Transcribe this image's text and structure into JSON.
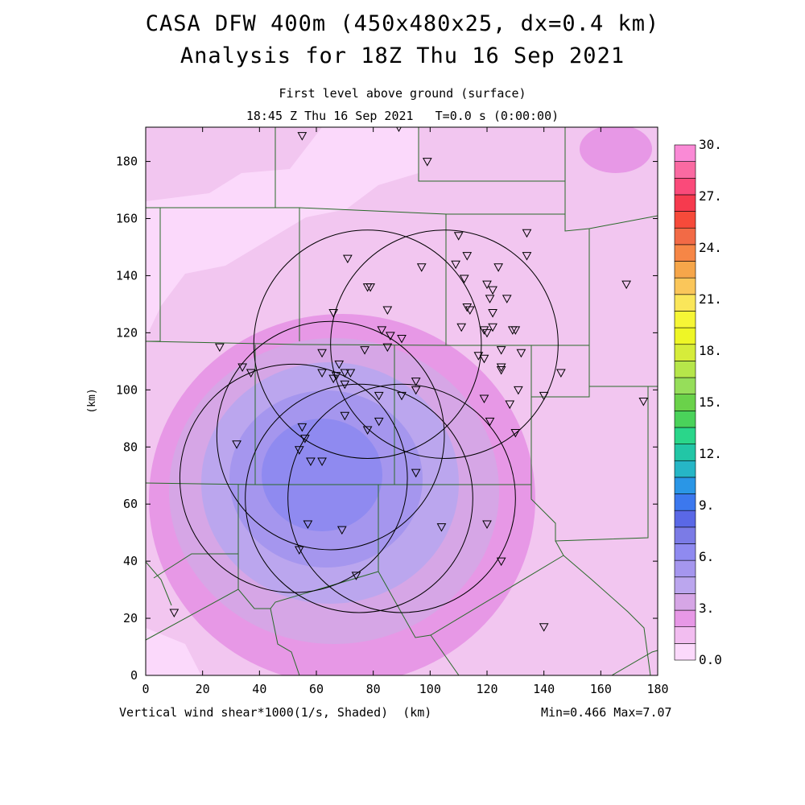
{
  "header": {
    "title_line1": "CASA DFW 400m (450x480x25, dx=0.4 km)",
    "title_line2": "Analysis for 18Z Thu 16 Sep 2021",
    "subtitle_line1": "First level above ground (surface)",
    "subtitle_line2": "18:45 Z Thu 16 Sep 2021   T=0.0 s (0:00:00)"
  },
  "footer": {
    "variable_label": "Vertical wind shear*1000(1/s, Shaded)  (km)",
    "minmax": "Min=0.466 Max=7.07"
  },
  "chart_data": {
    "type": "heatmap",
    "field": "Vertical wind shear*1000 (1/s)",
    "ylabel": "(km)",
    "xlim": [
      0,
      180
    ],
    "ylim": [
      0,
      192
    ],
    "x_ticks": [
      "0",
      "20",
      "40",
      "60",
      "80",
      "100",
      "120",
      "140",
      "160",
      "180"
    ],
    "y_ticks": [
      "0",
      "20",
      "40",
      "60",
      "80",
      "100",
      "120",
      "140",
      "160",
      "180"
    ],
    "min": 0.466,
    "max": 7.07,
    "colorbar": {
      "range": [
        0,
        30
      ],
      "labels": [
        "0.0",
        "3.",
        "6.",
        "9.",
        "12.",
        "15.",
        "18.",
        "21.",
        "24.",
        "27.",
        "30."
      ],
      "colors": [
        "#fbd9fb",
        "#f2bdf0",
        "#e798e6",
        "#d6a6e6",
        "#bba6ee",
        "#a596ee",
        "#8f8af0",
        "#7b7be6",
        "#5a68e6",
        "#3c78ee",
        "#2a96e6",
        "#26b6c6",
        "#22c6a6",
        "#2ad68a",
        "#4ad25a",
        "#6ad24a",
        "#96de5a",
        "#b6e64a",
        "#d6ec3a",
        "#eef626",
        "#f6f636",
        "#fae65a",
        "#fac65a",
        "#f6a64a",
        "#f68646",
        "#f26a46",
        "#f64a3a",
        "#f63a4e",
        "#fa4a7a",
        "#fa6aa2",
        "#fa8ad6"
      ]
    },
    "stations_km": [
      [
        55,
        189
      ],
      [
        89,
        192
      ],
      [
        99,
        180
      ],
      [
        110,
        154
      ],
      [
        134,
        155
      ],
      [
        71,
        146
      ],
      [
        113,
        147
      ],
      [
        134,
        147
      ],
      [
        109,
        144
      ],
      [
        97,
        143
      ],
      [
        124,
        143
      ],
      [
        112,
        139
      ],
      [
        120,
        137
      ],
      [
        122,
        135
      ],
      [
        79,
        136
      ],
      [
        78,
        136
      ],
      [
        169,
        137
      ],
      [
        121,
        132
      ],
      [
        127,
        132
      ],
      [
        113,
        129
      ],
      [
        114,
        128
      ],
      [
        85,
        128
      ],
      [
        66,
        127
      ],
      [
        122,
        127
      ],
      [
        122,
        122
      ],
      [
        119,
        121
      ],
      [
        130,
        121
      ],
      [
        83,
        121
      ],
      [
        111,
        122
      ],
      [
        120,
        120
      ],
      [
        86,
        119
      ],
      [
        90,
        118
      ],
      [
        129,
        121
      ],
      [
        26,
        115
      ],
      [
        85,
        115
      ],
      [
        77,
        114
      ],
      [
        125,
        114
      ],
      [
        62,
        113
      ],
      [
        132,
        113
      ],
      [
        117,
        112
      ],
      [
        119,
        111
      ],
      [
        68,
        109
      ],
      [
        34,
        108
      ],
      [
        125,
        107
      ],
      [
        125,
        108
      ],
      [
        37,
        106
      ],
      [
        62,
        106
      ],
      [
        70,
        106
      ],
      [
        72,
        106
      ],
      [
        146,
        106
      ],
      [
        67,
        105
      ],
      [
        66,
        104
      ],
      [
        70,
        102
      ],
      [
        95,
        103
      ],
      [
        131,
        100
      ],
      [
        95,
        100
      ],
      [
        82,
        98
      ],
      [
        90,
        98
      ],
      [
        140,
        98
      ],
      [
        119,
        97
      ],
      [
        175,
        96
      ],
      [
        128,
        95
      ],
      [
        70,
        91
      ],
      [
        121,
        89
      ],
      [
        82,
        89
      ],
      [
        55,
        87
      ],
      [
        78,
        86
      ],
      [
        130,
        85
      ],
      [
        56,
        83
      ],
      [
        32,
        81
      ],
      [
        54,
        79
      ],
      [
        58,
        75
      ],
      [
        62,
        75
      ],
      [
        95,
        71
      ],
      [
        57,
        53
      ],
      [
        69,
        51
      ],
      [
        104,
        52
      ],
      [
        120,
        53
      ],
      [
        54,
        44
      ],
      [
        125,
        40
      ],
      [
        74,
        35
      ],
      [
        10,
        22
      ],
      [
        140,
        17
      ]
    ],
    "circles_km": [
      [
        78,
        116,
        40
      ],
      [
        105,
        116,
        40
      ],
      [
        52,
        69,
        40
      ],
      [
        65,
        84,
        40
      ],
      [
        90,
        62,
        40
      ],
      [
        75,
        62,
        40
      ]
    ]
  }
}
